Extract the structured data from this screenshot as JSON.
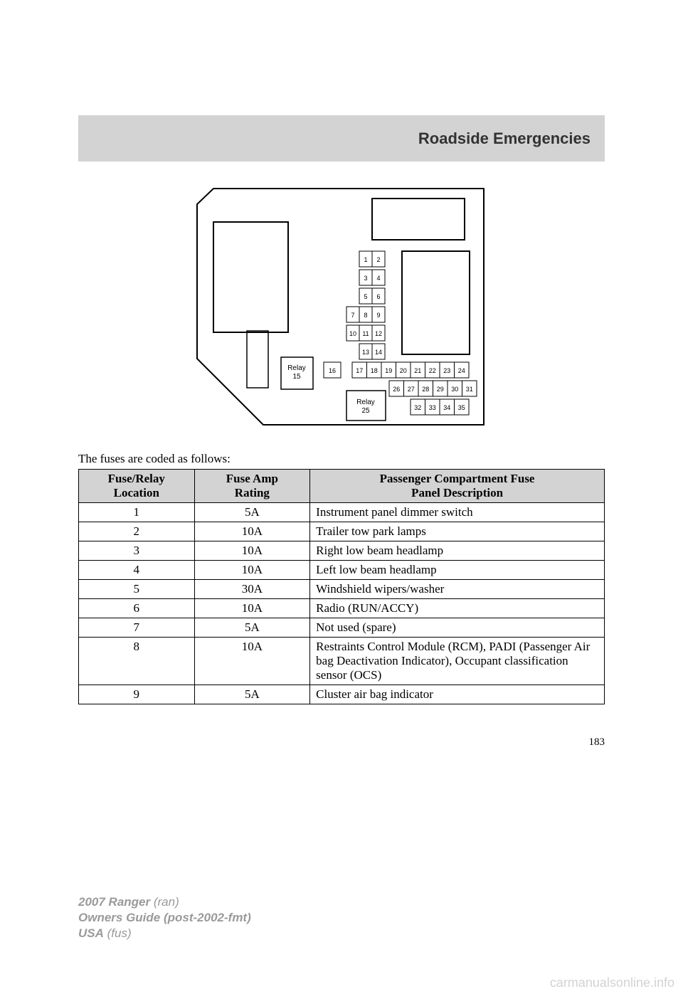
{
  "header": {
    "title": "Roadside Emergencies"
  },
  "diagram": {
    "relay15_label": "Relay\n15",
    "relay25_label": "Relay\n25",
    "cells": {
      "r1": [
        "1",
        "2"
      ],
      "r2": [
        "3",
        "4"
      ],
      "r3": [
        "5",
        "6"
      ],
      "r4": [
        "7",
        "8",
        "9"
      ],
      "r5": [
        "10",
        "11",
        "12"
      ],
      "r6": [
        "13",
        "14"
      ],
      "row16": "16",
      "rowA": [
        "17",
        "18",
        "19",
        "20",
        "21",
        "22",
        "23",
        "24"
      ],
      "rowB": [
        "26",
        "27",
        "28",
        "29",
        "30",
        "31"
      ],
      "rowC": [
        "32",
        "33",
        "34",
        "35"
      ]
    },
    "font_size": 9,
    "stroke": "#000000"
  },
  "caption": "The fuses are coded as follows:",
  "table": {
    "headers": [
      "Fuse/Relay\nLocation",
      "Fuse Amp\nRating",
      "Passenger Compartment Fuse\nPanel Description"
    ],
    "header_bg": "#d3d3d3",
    "rows": [
      {
        "loc": "1",
        "amp": "5A",
        "desc": "Instrument panel dimmer switch"
      },
      {
        "loc": "2",
        "amp": "10A",
        "desc": "Trailer tow park lamps"
      },
      {
        "loc": "3",
        "amp": "10A",
        "desc": "Right low beam headlamp"
      },
      {
        "loc": "4",
        "amp": "10A",
        "desc": "Left low beam headlamp"
      },
      {
        "loc": "5",
        "amp": "30A",
        "desc": "Windshield wipers/washer"
      },
      {
        "loc": "6",
        "amp": "10A",
        "desc": "Radio (RUN/ACCY)"
      },
      {
        "loc": "7",
        "amp": "5A",
        "desc": "Not used (spare)"
      },
      {
        "loc": "8",
        "amp": "10A",
        "desc": "Restraints Control Module (RCM), PADI (Passenger Air bag Deactivation Indicator), Occupant classification sensor (OCS)"
      },
      {
        "loc": "9",
        "amp": "5A",
        "desc": "Cluster air bag indicator"
      }
    ]
  },
  "page_number": "183",
  "footer": {
    "line1_bold": "2007 Ranger",
    "line1_rest": " (ran)",
    "line2_bold": "Owners Guide (post-2002-fmt)",
    "line3_bold": "USA",
    "line3_rest": " (fus)"
  },
  "watermark": "carmanualsonline.info"
}
